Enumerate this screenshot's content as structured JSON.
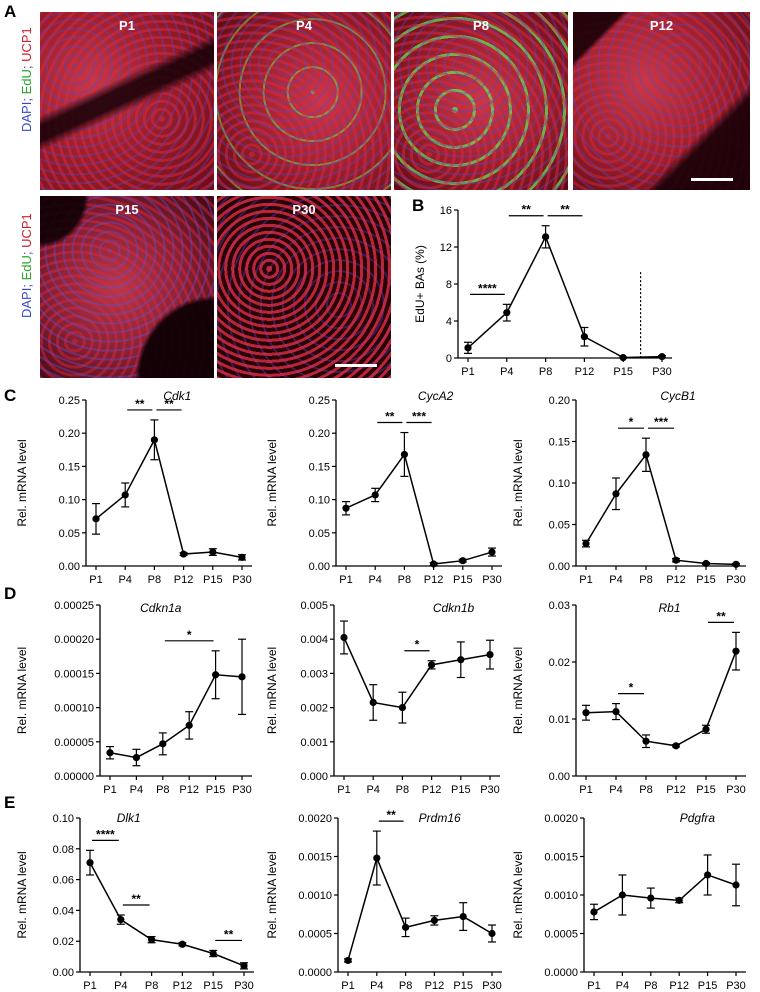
{
  "panels": {
    "a": "A",
    "b": "B",
    "c": "C",
    "d": "D",
    "e": "E"
  },
  "stain": {
    "dapi": "DAPI",
    "sep": "; ",
    "edu": "EdU",
    "ucp": "UCP1"
  },
  "micrographs": [
    {
      "label": "P1"
    },
    {
      "label": "P4"
    },
    {
      "label": "P8"
    },
    {
      "label": "P12"
    },
    {
      "label": "P15"
    },
    {
      "label": "P30"
    }
  ],
  "chart_data": [
    {
      "id": "B",
      "type": "line",
      "title": "",
      "ylabel": "EdU+ BAs (%)",
      "categories": [
        "P1",
        "P4",
        "P8",
        "P12",
        "P15",
        "P30"
      ],
      "values": [
        1.1,
        4.9,
        13.1,
        2.3,
        0.05,
        0.15
      ],
      "err": [
        0.6,
        0.9,
        1.2,
        1.0,
        0.05,
        0.1
      ],
      "ylim": [
        0,
        16
      ],
      "yticks": [
        "0",
        "4",
        "8",
        "12",
        "16"
      ],
      "sig": [
        {
          "from": 0,
          "to": 1,
          "label": "****"
        },
        {
          "from": 1,
          "to": 2,
          "label": "**"
        },
        {
          "from": 2,
          "to": 3,
          "label": "**"
        }
      ],
      "dotted_after": 4
    },
    {
      "id": "Cdk1",
      "type": "line",
      "title": "Cdk1",
      "ylabel": "Rel. mRNA level",
      "categories": [
        "P1",
        "P4",
        "P8",
        "P12",
        "P15",
        "P30"
      ],
      "values": [
        0.071,
        0.107,
        0.19,
        0.018,
        0.021,
        0.013
      ],
      "err": [
        0.023,
        0.018,
        0.03,
        0.002,
        0.005,
        0.004
      ],
      "ylim": [
        0,
        0.25
      ],
      "yticks": [
        "0.00",
        "0.05",
        "0.10",
        "0.15",
        "0.20",
        "0.25"
      ],
      "sig": [
        {
          "from": 1,
          "to": 2,
          "label": "**"
        },
        {
          "from": 2,
          "to": 3,
          "label": "**"
        }
      ]
    },
    {
      "id": "CycA2",
      "type": "line",
      "title": "CycA2",
      "ylabel": "Rel. mRNA level",
      "categories": [
        "P1",
        "P4",
        "P8",
        "P12",
        "P15",
        "P30"
      ],
      "values": [
        0.087,
        0.107,
        0.168,
        0.003,
        0.008,
        0.021
      ],
      "err": [
        0.01,
        0.01,
        0.033,
        0.002,
        0.002,
        0.006
      ],
      "ylim": [
        0,
        0.25
      ],
      "yticks": [
        "0.00",
        "0.05",
        "0.10",
        "0.15",
        "0.20",
        "0.25"
      ],
      "sig": [
        {
          "from": 1,
          "to": 2,
          "label": "**"
        },
        {
          "from": 2,
          "to": 3,
          "label": "***"
        }
      ]
    },
    {
      "id": "CycB1",
      "type": "line",
      "title": "CycB1",
      "ylabel": "Rel. mRNA level",
      "categories": [
        "P1",
        "P4",
        "P8",
        "P12",
        "P15",
        "P30"
      ],
      "values": [
        0.027,
        0.087,
        0.134,
        0.007,
        0.003,
        0.002
      ],
      "err": [
        0.004,
        0.019,
        0.02,
        0.002,
        0.001,
        0.001
      ],
      "ylim": [
        0,
        0.2
      ],
      "yticks": [
        "0.00",
        "0.05",
        "0.10",
        "0.15",
        "0.20"
      ],
      "sig": [
        {
          "from": 1,
          "to": 2,
          "label": "*"
        },
        {
          "from": 2,
          "to": 3,
          "label": "***"
        }
      ]
    },
    {
      "id": "Cdkn1a",
      "type": "line",
      "title": "Cdkn1a",
      "ylabel": "Rel. mRNA level",
      "categories": [
        "P1",
        "P4",
        "P8",
        "P12",
        "P15",
        "P30"
      ],
      "values": [
        3.4e-05,
        2.7e-05,
        4.7e-05,
        7.4e-05,
        0.000148,
        0.000145
      ],
      "err": [
        9e-06,
        1.2e-05,
        1.6e-05,
        2e-05,
        3.5e-05,
        5.5e-05
      ],
      "ylim": [
        0,
        0.00025
      ],
      "yticks": [
        "0.00000",
        "0.00005",
        "0.00010",
        "0.00015",
        "0.00020",
        "0.00025"
      ],
      "sig": [
        {
          "from": 2,
          "to": 4,
          "label": "*"
        }
      ]
    },
    {
      "id": "Cdkn1b",
      "type": "line",
      "title": "Cdkn1b",
      "ylabel": "Rel. mRNA level",
      "categories": [
        "P1",
        "P4",
        "P8",
        "P12",
        "P15",
        "P30"
      ],
      "values": [
        0.00405,
        0.00215,
        0.002,
        0.00325,
        0.0034,
        0.00355
      ],
      "err": [
        0.00048,
        0.00052,
        0.00045,
        0.00012,
        0.00052,
        0.00042
      ],
      "ylim": [
        0,
        0.005
      ],
      "yticks": [
        "0.000",
        "0.001",
        "0.002",
        "0.003",
        "0.004",
        "0.005"
      ],
      "sig": [
        {
          "from": 2,
          "to": 3,
          "label": "*"
        }
      ]
    },
    {
      "id": "Rb1",
      "type": "line",
      "title": "Rb1",
      "ylabel": "Rel. mRNA level",
      "categories": [
        "P1",
        "P4",
        "P8",
        "P12",
        "P15",
        "P30"
      ],
      "values": [
        0.0111,
        0.0113,
        0.0061,
        0.0053,
        0.0082,
        0.0219
      ],
      "err": [
        0.0013,
        0.0014,
        0.0011,
        0.0002,
        0.0007,
        0.0033
      ],
      "ylim": [
        0,
        0.03
      ],
      "yticks": [
        "0.00",
        "0.01",
        "0.02",
        "0.03"
      ],
      "sig": [
        {
          "from": 1,
          "to": 2,
          "label": "*"
        },
        {
          "from": 4,
          "to": 5,
          "label": "**"
        }
      ]
    },
    {
      "id": "Dlk1",
      "type": "line",
      "title": "Dlk1",
      "ylabel": "Rel. mRNA level",
      "categories": [
        "P1",
        "P4",
        "P8",
        "P12",
        "P15",
        "P30"
      ],
      "xticks": [
        "P1",
        "P4",
        "P8",
        "P12",
        "P15",
        "P30"
      ],
      "values": [
        0.071,
        0.034,
        0.021,
        0.018,
        0.012,
        0.004
      ],
      "err": [
        0.008,
        0.003,
        0.002,
        0.001,
        0.002,
        0.002
      ],
      "ylim": [
        0,
        0.1
      ],
      "yticks": [
        "0.00",
        "0.02",
        "0.04",
        "0.06",
        "0.08",
        "0.10"
      ],
      "sig": [
        {
          "from": 0,
          "to": 1,
          "label": "****"
        },
        {
          "from": 1,
          "to": 2,
          "label": "**"
        },
        {
          "from": 4,
          "to": 5,
          "label": "**"
        }
      ]
    },
    {
      "id": "Prdm16",
      "type": "line",
      "title": "Prdm16",
      "ylabel": "Rel. mRNA level",
      "categories": [
        "P1",
        "P4",
        "P8",
        "P12",
        "P15",
        "P30"
      ],
      "values": [
        0.00015,
        0.00148,
        0.00058,
        0.00067,
        0.00072,
        0.0005
      ],
      "err": [
        2e-05,
        0.00035,
        0.00012,
        6e-05,
        0.00018,
        0.00011
      ],
      "ylim": [
        0,
        0.002
      ],
      "yticks": [
        "0.0000",
        "0.0005",
        "0.0010",
        "0.0015",
        "0.0020"
      ],
      "sig": [
        {
          "from": 1,
          "to": 2,
          "label": "**"
        }
      ]
    },
    {
      "id": "Pdgfra",
      "type": "line",
      "title": "Pdgfra",
      "ylabel": "Rel. mRNA level",
      "categories": [
        "P1",
        "P4",
        "P8",
        "P12",
        "P15",
        "P30"
      ],
      "values": [
        0.00078,
        0.001,
        0.00096,
        0.00093,
        0.00126,
        0.00113
      ],
      "err": [
        0.0001,
        0.00026,
        0.00013,
        3e-05,
        0.00026,
        0.00027
      ],
      "ylim": [
        0,
        0.002
      ],
      "yticks": [
        "0.0000",
        "0.0005",
        "0.0010",
        "0.0015",
        "0.0020"
      ],
      "sig": []
    }
  ]
}
